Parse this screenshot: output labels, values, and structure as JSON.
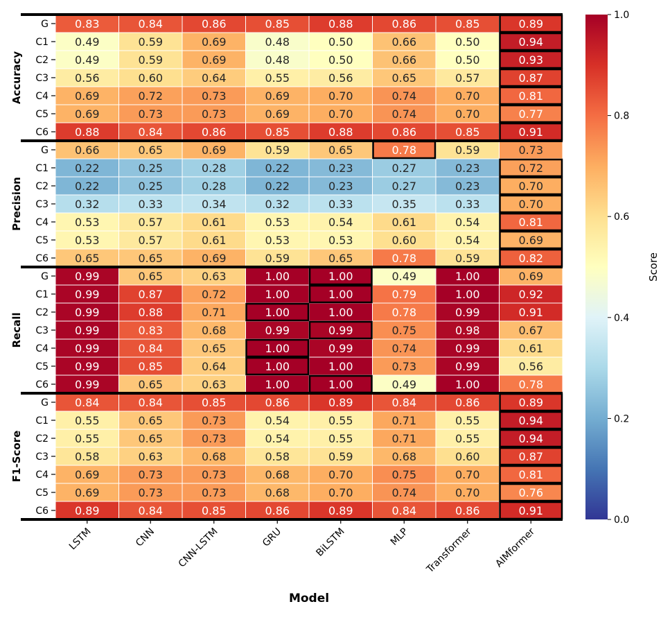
{
  "chart_data": {
    "type": "heatmap",
    "xlabel": "Model",
    "ylabel": "",
    "colorbar": {
      "label": "Score",
      "range": [
        0.0,
        1.0
      ],
      "ticks": [
        "0.0",
        "0.2",
        "0.4",
        "0.6",
        "0.8",
        "1.0"
      ],
      "colormap": "RdYlBu_r"
    },
    "columns": [
      "LSTM",
      "CNN",
      "CNN-LSTM",
      "GRU",
      "BiLSTM",
      "MLP",
      "Transformer",
      "AIMformer"
    ],
    "row_labels": [
      "G",
      "C1",
      "C2",
      "C3",
      "C4",
      "C5",
      "C6"
    ],
    "groups": [
      {
        "name": "Accuracy",
        "values": [
          [
            0.83,
            0.84,
            0.86,
            0.85,
            0.88,
            0.86,
            0.85,
            0.89
          ],
          [
            0.49,
            0.59,
            0.69,
            0.48,
            0.5,
            0.66,
            0.5,
            0.94
          ],
          [
            0.49,
            0.59,
            0.69,
            0.48,
            0.5,
            0.66,
            0.5,
            0.93
          ],
          [
            0.56,
            0.6,
            0.64,
            0.55,
            0.56,
            0.65,
            0.57,
            0.87
          ],
          [
            0.69,
            0.72,
            0.73,
            0.69,
            0.7,
            0.74,
            0.7,
            0.81
          ],
          [
            0.69,
            0.73,
            0.73,
            0.69,
            0.7,
            0.74,
            0.7,
            0.77
          ],
          [
            0.88,
            0.84,
            0.86,
            0.85,
            0.88,
            0.86,
            0.85,
            0.91
          ]
        ],
        "highlighted": [
          "AIMformer",
          "AIMformer",
          "AIMformer",
          "AIMformer",
          "AIMformer",
          "AIMformer",
          "AIMformer"
        ]
      },
      {
        "name": "Precision",
        "values": [
          [
            0.66,
            0.65,
            0.69,
            0.59,
            0.65,
            0.78,
            0.59,
            0.73
          ],
          [
            0.22,
            0.25,
            0.28,
            0.22,
            0.23,
            0.27,
            0.23,
            0.72
          ],
          [
            0.22,
            0.25,
            0.28,
            0.22,
            0.23,
            0.27,
            0.23,
            0.7
          ],
          [
            0.32,
            0.33,
            0.34,
            0.32,
            0.33,
            0.35,
            0.33,
            0.7
          ],
          [
            0.53,
            0.57,
            0.61,
            0.53,
            0.54,
            0.61,
            0.54,
            0.81
          ],
          [
            0.53,
            0.57,
            0.61,
            0.53,
            0.53,
            0.6,
            0.54,
            0.69
          ],
          [
            0.65,
            0.65,
            0.69,
            0.59,
            0.65,
            0.78,
            0.59,
            0.82
          ]
        ],
        "highlighted": [
          "MLP",
          "AIMformer",
          "AIMformer",
          "AIMformer",
          "AIMformer",
          "AIMformer",
          "AIMformer"
        ]
      },
      {
        "name": "Recall",
        "values": [
          [
            0.99,
            0.65,
            0.63,
            1.0,
            1.0,
            0.49,
            1.0,
            0.69
          ],
          [
            0.99,
            0.87,
            0.72,
            1.0,
            1.0,
            0.79,
            1.0,
            0.92
          ],
          [
            0.99,
            0.88,
            0.71,
            1.0,
            1.0,
            0.78,
            0.99,
            0.91
          ],
          [
            0.99,
            0.83,
            0.68,
            0.99,
            0.99,
            0.75,
            0.98,
            0.67
          ],
          [
            0.99,
            0.84,
            0.65,
            1.0,
            0.99,
            0.74,
            0.99,
            0.61
          ],
          [
            0.99,
            0.85,
            0.64,
            1.0,
            1.0,
            0.73,
            0.99,
            0.56
          ],
          [
            0.99,
            0.65,
            0.63,
            1.0,
            1.0,
            0.49,
            1.0,
            0.78
          ]
        ],
        "highlighted": [
          "BiLSTM",
          "BiLSTM",
          "GRU",
          "BiLSTM",
          "GRU",
          "GRU",
          "BiLSTM"
        ]
      },
      {
        "name": "F1-Score",
        "values": [
          [
            0.84,
            0.84,
            0.85,
            0.86,
            0.89,
            0.84,
            0.86,
            0.89
          ],
          [
            0.55,
            0.65,
            0.73,
            0.54,
            0.55,
            0.71,
            0.55,
            0.94
          ],
          [
            0.55,
            0.65,
            0.73,
            0.54,
            0.55,
            0.71,
            0.55,
            0.94
          ],
          [
            0.58,
            0.63,
            0.68,
            0.58,
            0.59,
            0.68,
            0.6,
            0.87
          ],
          [
            0.69,
            0.73,
            0.73,
            0.68,
            0.7,
            0.75,
            0.7,
            0.81
          ],
          [
            0.69,
            0.73,
            0.73,
            0.68,
            0.7,
            0.74,
            0.7,
            0.76
          ],
          [
            0.89,
            0.84,
            0.85,
            0.86,
            0.89,
            0.84,
            0.86,
            0.91
          ]
        ],
        "highlighted": [
          "AIMformer",
          "AIMformer",
          "AIMformer",
          "AIMformer",
          "AIMformer",
          "AIMformer",
          "AIMformer"
        ]
      }
    ]
  }
}
